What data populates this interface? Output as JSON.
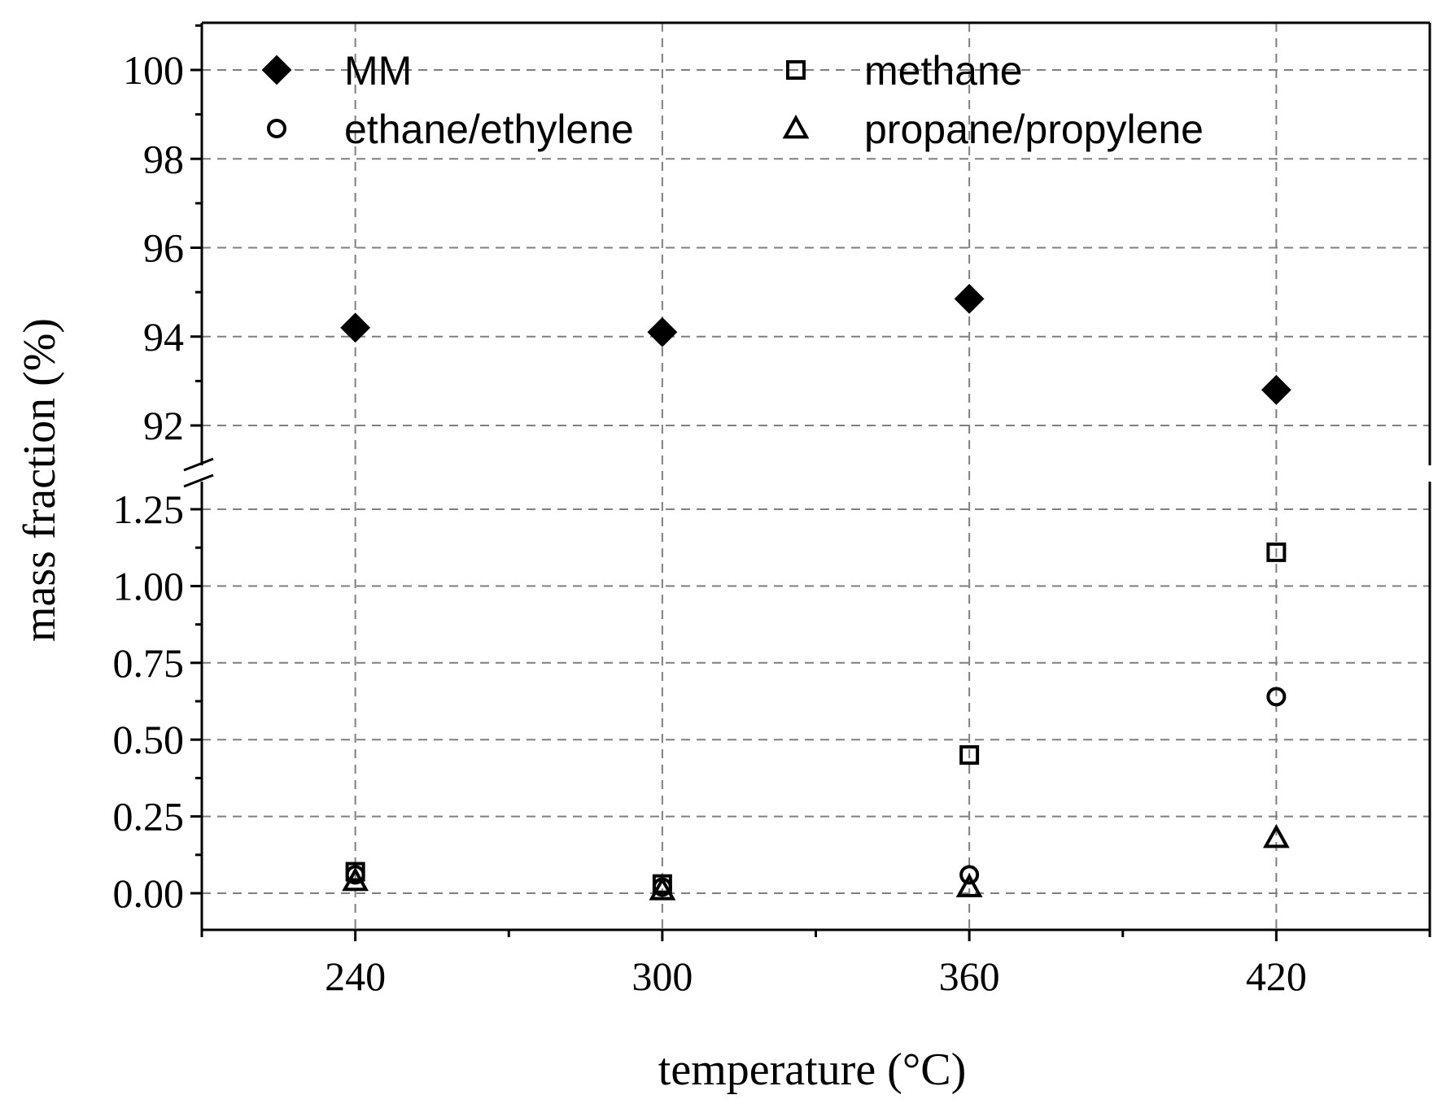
{
  "chart_data": {
    "type": "scatter",
    "xlabel": "temperature (°C)",
    "ylabel": "mass fraction (%)",
    "x": [
      240,
      300,
      360,
      420
    ],
    "xlim": [
      210,
      450
    ],
    "x_tick_labels": [
      "240",
      "300",
      "360",
      "420"
    ],
    "y_scale": "broken",
    "y_segments": [
      {
        "range": [
          -0.125,
          1.3
        ],
        "tick_labels": [
          "0.00",
          "0.25",
          "0.50",
          "0.75",
          "1.00",
          "1.25"
        ],
        "ticks": [
          0,
          0.25,
          0.5,
          0.75,
          1.0,
          1.25
        ]
      },
      {
        "range": [
          91.0,
          101.2
        ],
        "tick_labels": [
          "92",
          "94",
          "96",
          "98",
          "100"
        ],
        "ticks": [
          92,
          94,
          96,
          98,
          100
        ]
      }
    ],
    "grid": true,
    "legend_placement": "top",
    "series": [
      {
        "name": "MM",
        "marker": "filled-diamond",
        "values": [
          94.2,
          94.1,
          94.85,
          92.8
        ]
      },
      {
        "name": "methane",
        "marker": "open-square",
        "values": [
          0.07,
          0.03,
          0.45,
          1.11
        ]
      },
      {
        "name": "ethane/ethylene",
        "marker": "open-circle",
        "values": [
          0.06,
          0.02,
          0.06,
          0.64
        ]
      },
      {
        "name": "propane/propylene",
        "marker": "open-triangle",
        "values": [
          0.04,
          0.01,
          0.02,
          0.18
        ]
      }
    ]
  }
}
